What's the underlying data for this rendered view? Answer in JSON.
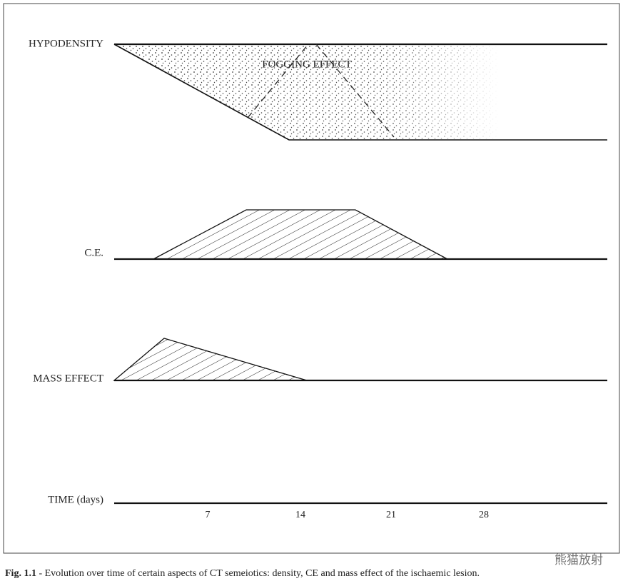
{
  "figure": {
    "rows": [
      "HYPODENSITY",
      "C.E.",
      "MASS EFFECT",
      "TIME (days)"
    ],
    "annotation": "FOGGING EFFECT",
    "time_ticks": [
      "7",
      "14",
      "21",
      "28"
    ],
    "caption": {
      "label": "Fig. 1.1",
      "text": " - Evolution over time of certain aspects of CT semeiotics: density, CE and mass effect of the ischaemic lesion."
    },
    "watermark": "熊猫放射"
  }
}
